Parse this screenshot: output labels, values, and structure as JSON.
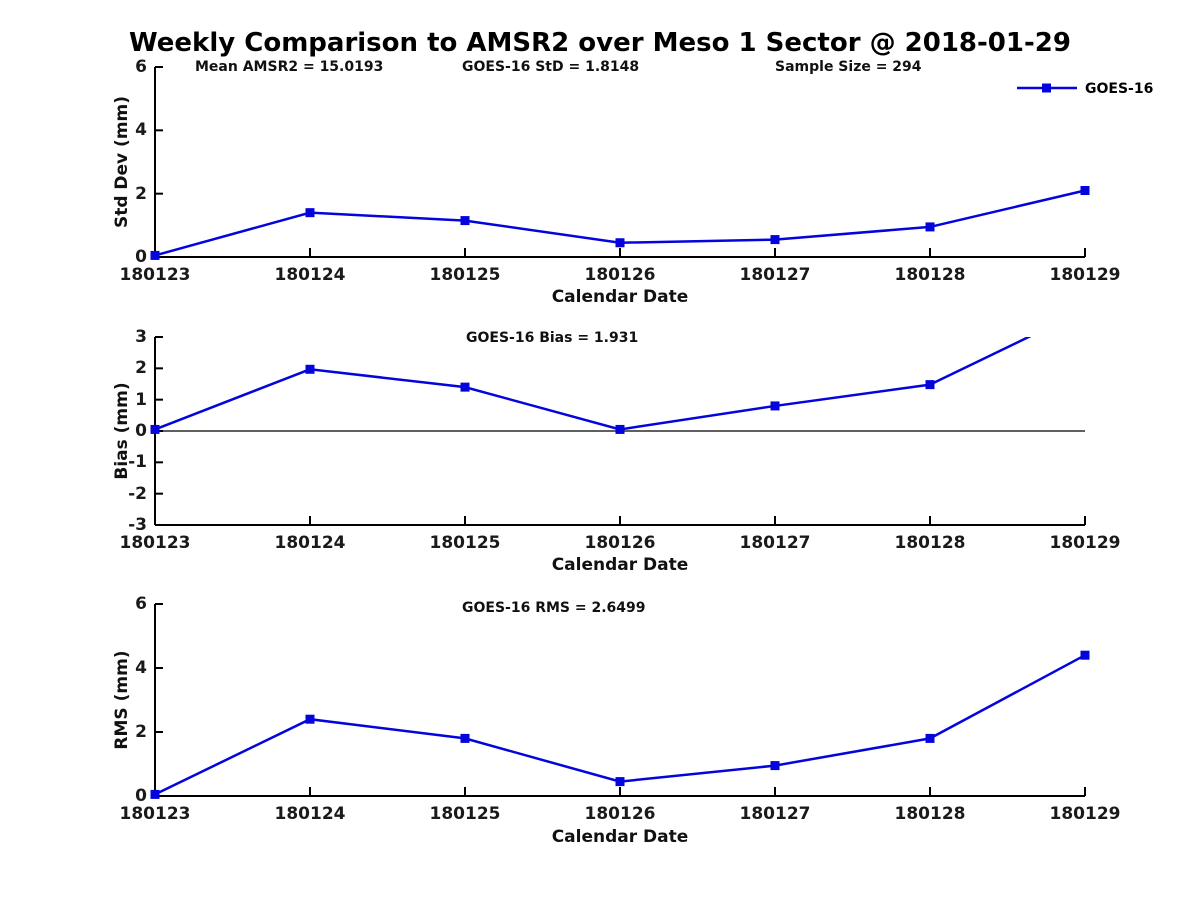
{
  "title": "Weekly Comparison to AMSR2 over Meso 1 Sector @ 2018-01-29",
  "colors": {
    "line": "#0404dc",
    "marker": "#0404dc",
    "axis": "#000000",
    "zero_line": "#000000",
    "background": "#ffffff"
  },
  "legend": {
    "label": "GOES-16"
  },
  "chart_data": [
    {
      "type": "line",
      "panel": "std-dev",
      "x": [
        "180123",
        "180124",
        "180125",
        "180126",
        "180127",
        "180128",
        "180129"
      ],
      "series": [
        {
          "name": "GOES-16",
          "values": [
            0.05,
            1.4,
            1.15,
            0.45,
            0.55,
            0.95,
            2.1
          ]
        }
      ],
      "xlabel": "Calendar Date",
      "ylabel": "Std Dev (mm)",
      "ylim": [
        0,
        6
      ],
      "yticks": [
        "0",
        "2",
        "4",
        "6"
      ],
      "grid": false,
      "zero_line": false,
      "legend_position": "top-right",
      "annotations": [
        "Mean AMSR2 = 15.0193",
        "GOES-16 StD = 1.8148",
        "Sample Size = 294"
      ]
    },
    {
      "type": "line",
      "panel": "bias",
      "x": [
        "180123",
        "180124",
        "180125",
        "180126",
        "180127",
        "180128",
        "180129"
      ],
      "series": [
        {
          "name": "GOES-16",
          "values": [
            0.05,
            1.97,
            1.4,
            0.05,
            0.8,
            1.48,
            3.87
          ]
        }
      ],
      "xlabel": "Calendar Date",
      "ylabel": "Bias (mm)",
      "ylim": [
        -3,
        3
      ],
      "yticks": [
        "-3",
        "-2",
        "-1",
        "0",
        "1",
        "2",
        "3"
      ],
      "grid": false,
      "zero_line": true,
      "clip_to_ylim": true,
      "annotations": [
        "GOES-16 Bias  = 1.931"
      ]
    },
    {
      "type": "line",
      "panel": "rms",
      "x": [
        "180123",
        "180124",
        "180125",
        "180126",
        "180127",
        "180128",
        "180129"
      ],
      "series": [
        {
          "name": "GOES-16",
          "values": [
            0.05,
            2.4,
            1.8,
            0.45,
            0.95,
            1.8,
            4.4
          ]
        }
      ],
      "xlabel": "Calendar Date",
      "ylabel": "RMS (mm)",
      "ylim": [
        0,
        6
      ],
      "yticks": [
        "0",
        "2",
        "4",
        "6"
      ],
      "grid": false,
      "zero_line": false,
      "annotations": [
        "GOES-16 RMS = 2.6499"
      ]
    }
  ]
}
